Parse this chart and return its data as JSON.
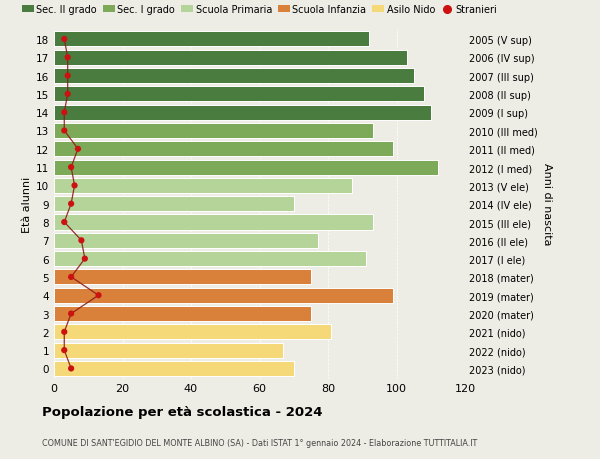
{
  "ages": [
    18,
    17,
    16,
    15,
    14,
    13,
    12,
    11,
    10,
    9,
    8,
    7,
    6,
    5,
    4,
    3,
    2,
    1,
    0
  ],
  "right_labels": [
    "2005 (V sup)",
    "2006 (IV sup)",
    "2007 (III sup)",
    "2008 (II sup)",
    "2009 (I sup)",
    "2010 (III med)",
    "2011 (II med)",
    "2012 (I med)",
    "2013 (V ele)",
    "2014 (IV ele)",
    "2015 (III ele)",
    "2016 (II ele)",
    "2017 (I ele)",
    "2018 (mater)",
    "2019 (mater)",
    "2020 (mater)",
    "2021 (nido)",
    "2022 (nido)",
    "2023 (nido)"
  ],
  "bar_values": [
    92,
    103,
    105,
    108,
    110,
    93,
    99,
    112,
    87,
    70,
    93,
    77,
    91,
    75,
    99,
    75,
    81,
    67,
    70
  ],
  "bar_colors": [
    "#4a7c3f",
    "#4a7c3f",
    "#4a7c3f",
    "#4a7c3f",
    "#4a7c3f",
    "#7daa58",
    "#7daa58",
    "#7daa58",
    "#b5d49a",
    "#b5d49a",
    "#b5d49a",
    "#b5d49a",
    "#b5d49a",
    "#d9803a",
    "#d9803a",
    "#d9803a",
    "#f5d878",
    "#f5d878",
    "#f5d878"
  ],
  "stranieri_values": [
    3,
    4,
    4,
    4,
    3,
    3,
    7,
    5,
    6,
    5,
    3,
    8,
    9,
    5,
    13,
    5,
    3,
    3,
    5
  ],
  "legend_labels": [
    "Sec. II grado",
    "Sec. I grado",
    "Scuola Primaria",
    "Scuola Infanzia",
    "Asilo Nido",
    "Stranieri"
  ],
  "legend_colors": [
    "#4a7c3f",
    "#7daa58",
    "#b5d49a",
    "#d9803a",
    "#f5d878",
    "#cc2222"
  ],
  "title": "Popolazione per età scolastica - 2024",
  "subtitle": "COMUNE DI SANT'EGIDIO DEL MONTE ALBINO (SA) - Dati ISTAT 1° gennaio 2024 - Elaborazione TUTTITALIA.IT",
  "ylabel": "Età alunni",
  "right_axis_label": "Anni di nascita",
  "xlim": [
    0,
    120
  ],
  "background_color": "#eeede5",
  "bar_height": 0.82
}
